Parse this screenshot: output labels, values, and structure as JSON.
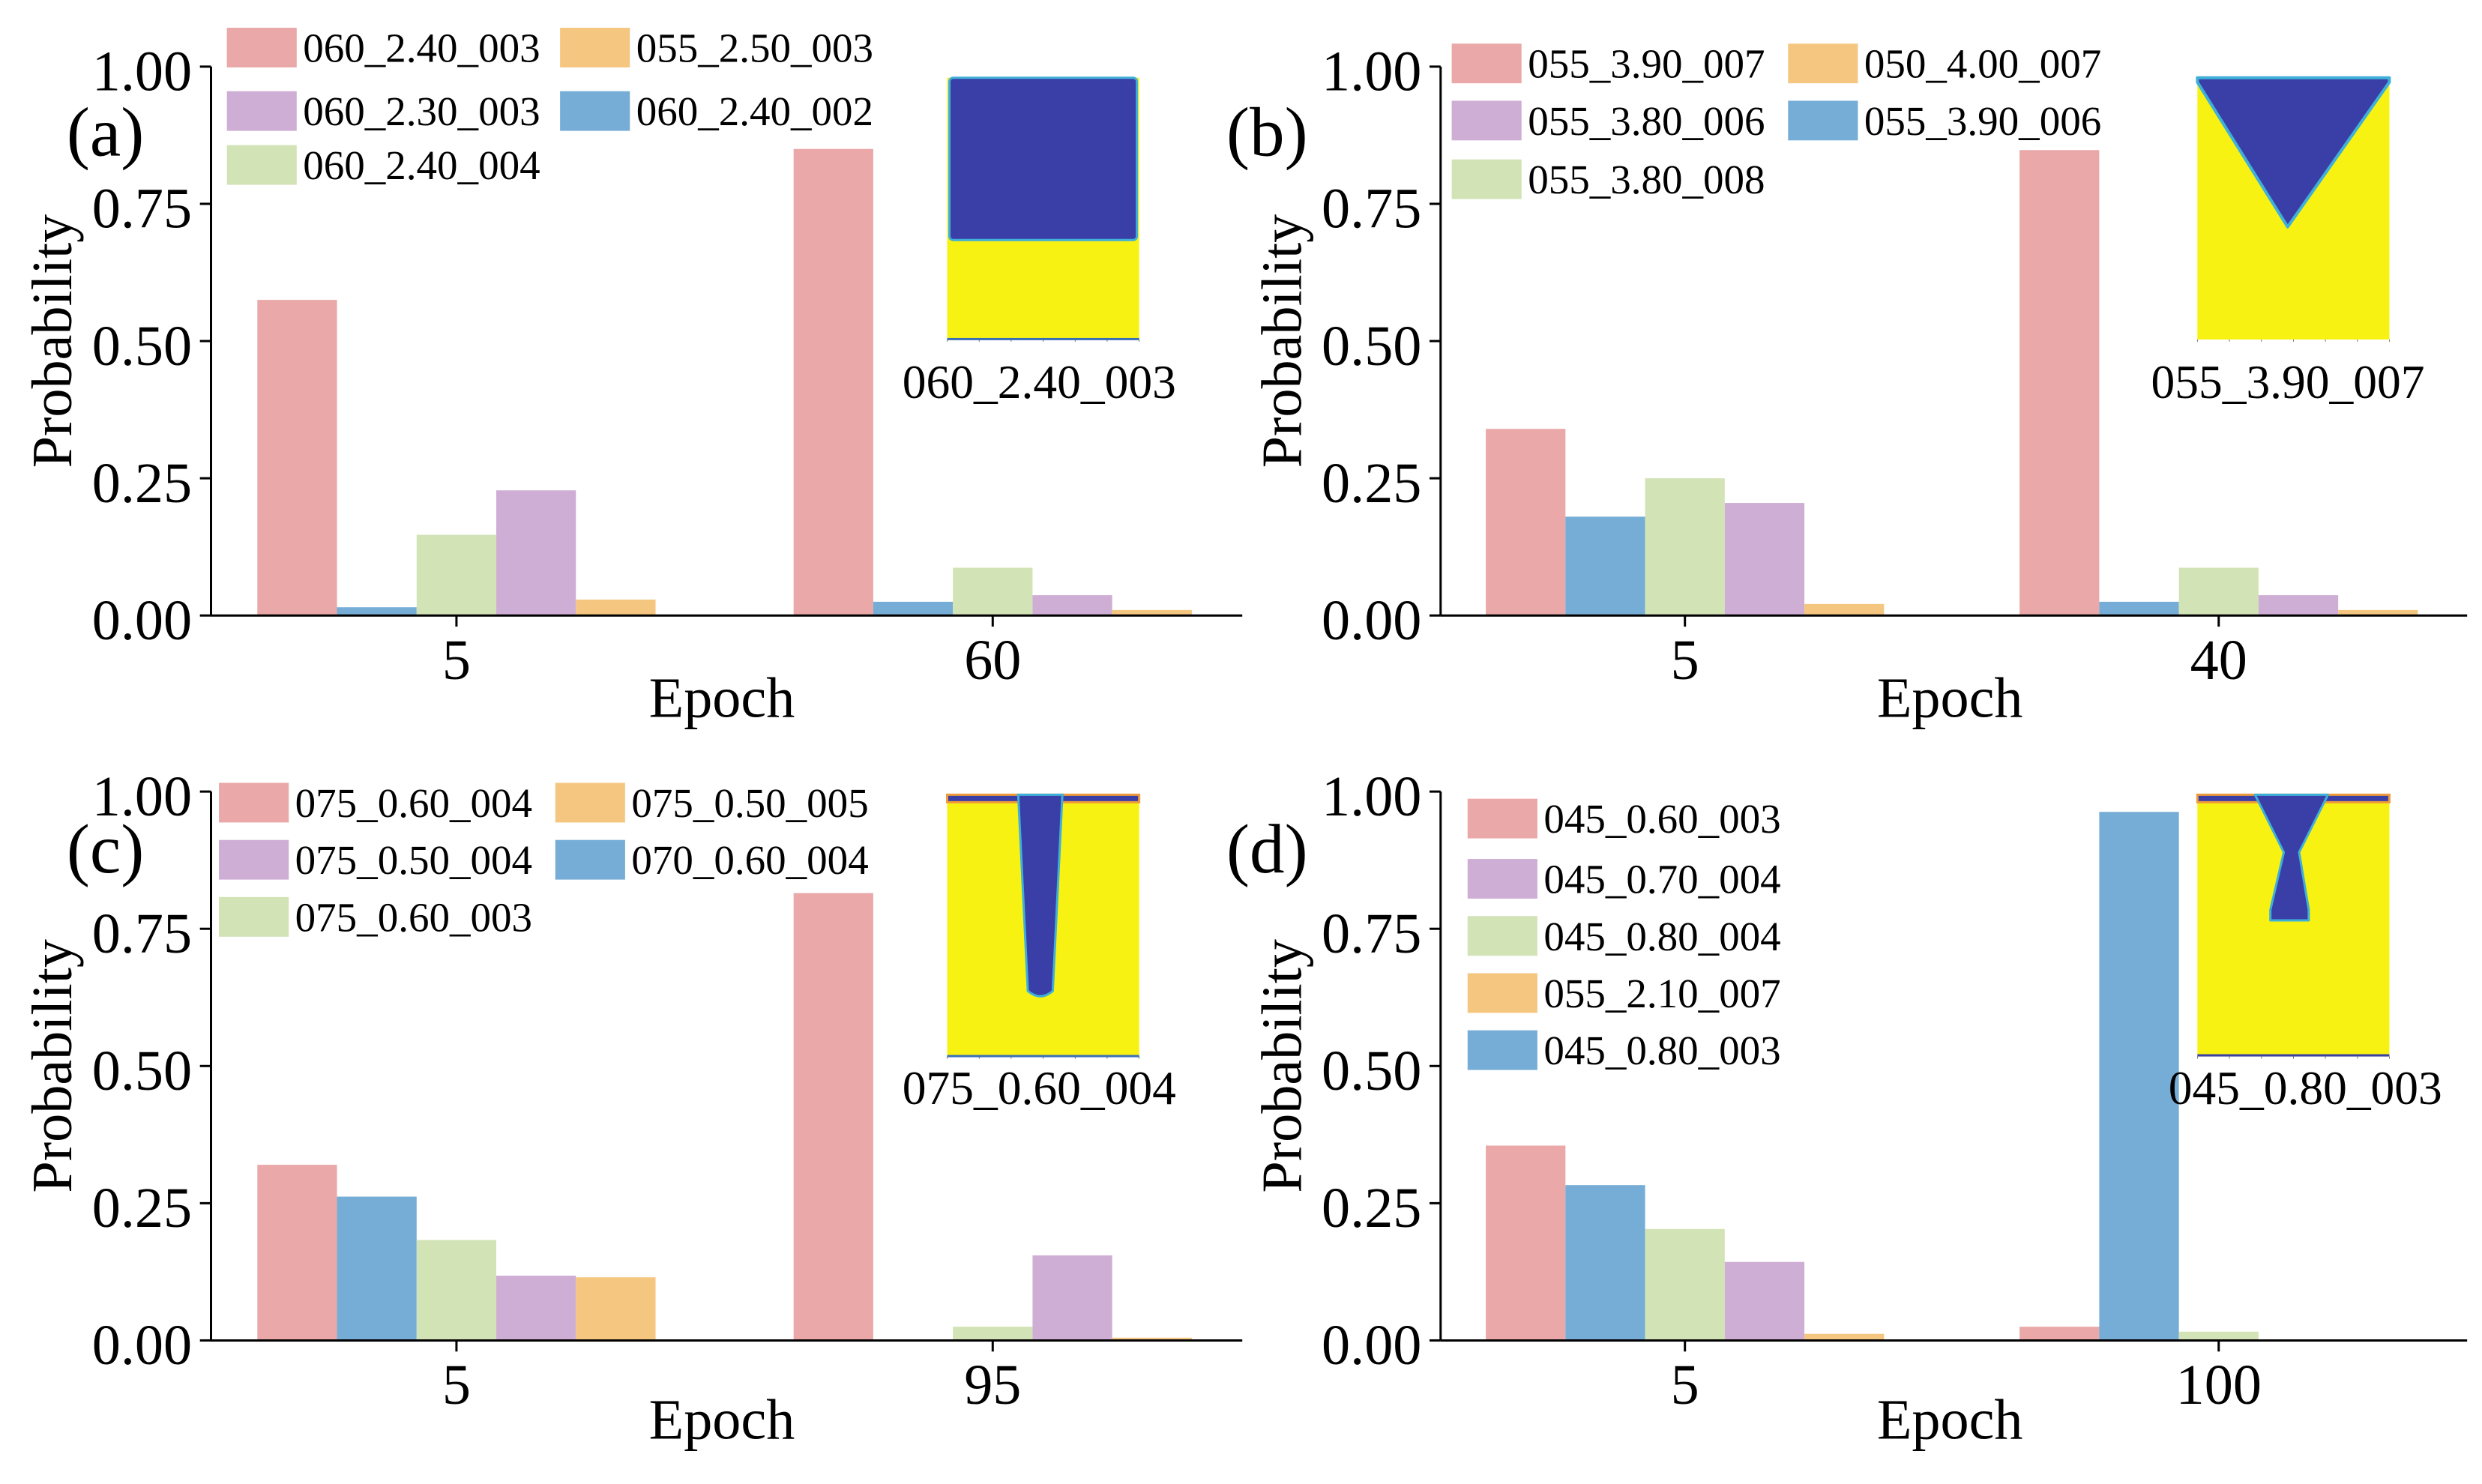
{
  "chart_data": [
    {
      "panel": "(a)",
      "type": "bar",
      "xlabel": "Epoch",
      "ylabel": "Probability",
      "ylim": [
        0,
        1
      ],
      "yticks": [
        "0.00",
        "0.25",
        "0.50",
        "0.75",
        "1.00"
      ],
      "categories": [
        "5",
        "60"
      ],
      "legend": [
        "060_2.40_003",
        "055_2.50_003",
        "060_2.30_003",
        "060_2.40_002",
        "060_2.40_004"
      ],
      "series": [
        {
          "name": "060_2.40_003",
          "color": "#eaa8a8",
          "values": [
            0.575,
            0.85
          ]
        },
        {
          "name": "060_2.40_002",
          "color": "#75add6",
          "values": [
            0.015,
            0.025
          ]
        },
        {
          "name": "060_2.40_004",
          "color": "#d2e3b6",
          "values": [
            0.147,
            0.087
          ]
        },
        {
          "name": "060_2.30_003",
          "color": "#cfaed5",
          "values": [
            0.228,
            0.037
          ]
        },
        {
          "name": "055_2.50_003",
          "color": "#f5c680",
          "values": [
            0.029,
            0.01
          ]
        }
      ],
      "inset": {
        "label": "060_2.40_003",
        "shape": "rect"
      }
    },
    {
      "panel": "(b)",
      "type": "bar",
      "xlabel": "Epoch",
      "ylabel": "Probability",
      "ylim": [
        0,
        1
      ],
      "yticks": [
        "0.00",
        "0.25",
        "0.50",
        "0.75",
        "1.00"
      ],
      "categories": [
        "5",
        "40"
      ],
      "legend": [
        "055_3.90_007",
        "050_4.00_007",
        "055_3.80_006",
        "055_3.90_006",
        "055_3.80_008"
      ],
      "series": [
        {
          "name": "055_3.90_007",
          "color": "#eaa8a8",
          "values": [
            0.34,
            0.848
          ]
        },
        {
          "name": "055_3.90_006",
          "color": "#75add6",
          "values": [
            0.18,
            0.025
          ]
        },
        {
          "name": "055_3.80_008",
          "color": "#d2e3b6",
          "values": [
            0.25,
            0.087
          ]
        },
        {
          "name": "055_3.80_006",
          "color": "#cfaed5",
          "values": [
            0.205,
            0.037
          ]
        },
        {
          "name": "050_4.00_007",
          "color": "#f5c680",
          "values": [
            0.021,
            0.01
          ]
        }
      ],
      "inset": {
        "label": "055_3.90_007",
        "shape": "v"
      }
    },
    {
      "panel": "(c)",
      "type": "bar",
      "xlabel": "Epoch",
      "ylabel": "Probability",
      "ylim": [
        0,
        1
      ],
      "yticks": [
        "0.00",
        "0.25",
        "0.50",
        "0.75",
        "1.00"
      ],
      "categories": [
        "5",
        "95"
      ],
      "legend": [
        "075_0.60_004",
        "075_0.50_005",
        "075_0.50_004",
        "070_0.60_004",
        "075_0.60_003"
      ],
      "series": [
        {
          "name": "075_0.60_004",
          "color": "#eaa8a8",
          "values": [
            0.32,
            0.815
          ]
        },
        {
          "name": "070_0.60_004",
          "color": "#75add6",
          "values": [
            0.262,
            0.0
          ]
        },
        {
          "name": "075_0.60_003",
          "color": "#d2e3b6",
          "values": [
            0.183,
            0.025
          ]
        },
        {
          "name": "075_0.50_004",
          "color": "#cfaed5",
          "values": [
            0.118,
            0.155
          ]
        },
        {
          "name": "075_0.50_005",
          "color": "#f5c680",
          "values": [
            0.115,
            0.005
          ]
        }
      ],
      "inset": {
        "label": "075_0.60_004",
        "shape": "needle"
      }
    },
    {
      "panel": "(d)",
      "type": "bar",
      "xlabel": "Epoch",
      "ylabel": "Probability",
      "ylim": [
        0,
        1
      ],
      "yticks": [
        "0.00",
        "0.25",
        "0.50",
        "0.75",
        "1.00"
      ],
      "categories": [
        "5",
        "100"
      ],
      "legend": [
        "045_0.60_003",
        "045_0.70_004",
        "045_0.80_004",
        "055_2.10_007",
        "045_0.80_003"
      ],
      "series": [
        {
          "name": "045_0.60_003",
          "color": "#eaa8a8",
          "values": [
            0.355,
            0.025
          ]
        },
        {
          "name": "045_0.80_003",
          "color": "#75add6",
          "values": [
            0.283,
            0.963
          ]
        },
        {
          "name": "045_0.80_004",
          "color": "#d2e3b6",
          "values": [
            0.203,
            0.016
          ]
        },
        {
          "name": "045_0.70_004",
          "color": "#cfaed5",
          "values": [
            0.143,
            0.0
          ]
        },
        {
          "name": "055_2.10_007",
          "color": "#f5c680",
          "values": [
            0.012,
            0.0
          ]
        }
      ],
      "inset": {
        "label": "045_0.80_003",
        "shape": "hourglass"
      }
    }
  ]
}
